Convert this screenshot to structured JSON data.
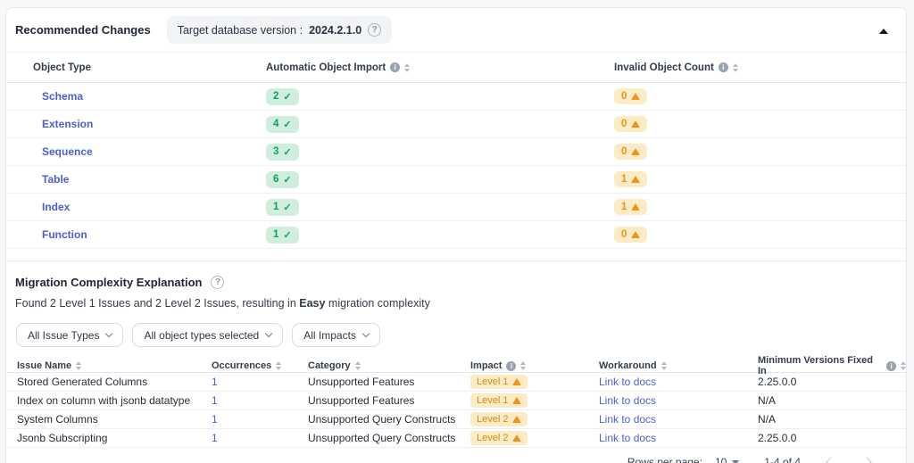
{
  "header": {
    "title": "Recommended Changes",
    "target_version_label": "Target database version :",
    "target_version_value": "2024.2.1.0"
  },
  "object_table": {
    "columns": [
      {
        "label": "Object Type"
      },
      {
        "label": "Automatic Object Import",
        "info": true,
        "sort": true
      },
      {
        "label": "Invalid Object Count",
        "info": true,
        "sort": true
      }
    ],
    "rows": [
      {
        "type": "Schema",
        "import_count": "2",
        "invalid_count": "0"
      },
      {
        "type": "Extension",
        "import_count": "4",
        "invalid_count": "0"
      },
      {
        "type": "Sequence",
        "import_count": "3",
        "invalid_count": "0"
      },
      {
        "type": "Table",
        "import_count": "6",
        "invalid_count": "1"
      },
      {
        "type": "Index",
        "import_count": "1",
        "invalid_count": "1"
      },
      {
        "type": "Function",
        "import_count": "1",
        "invalid_count": "0"
      }
    ]
  },
  "complexity": {
    "title": "Migration Complexity Explanation",
    "summary_prefix": "Found 2 Level 1 Issues and 2 Level 2 Issues, resulting in ",
    "summary_bold": "Easy",
    "summary_suffix": " migration complexity",
    "filters": [
      {
        "label": "All Issue Types"
      },
      {
        "label": "All object types selected"
      },
      {
        "label": "All Impacts"
      }
    ]
  },
  "issues_table": {
    "columns": [
      {
        "label": "Issue Name",
        "sort": true
      },
      {
        "label": "Occurrences",
        "sort": true
      },
      {
        "label": "Category",
        "sort": true
      },
      {
        "label": "Impact",
        "info": true,
        "sort": true
      },
      {
        "label": "Workaround",
        "sort": true
      },
      {
        "label": "Minimum Versions Fixed In",
        "info": true,
        "sort": true
      }
    ],
    "rows": [
      {
        "name": "Stored Generated Columns",
        "occurrences": "1",
        "category": "Unsupported Features",
        "impact": "Level 1",
        "workaround": "Link to docs",
        "min_version": "2.25.0.0"
      },
      {
        "name": "Index on column with jsonb datatype",
        "occurrences": "1",
        "category": "Unsupported Features",
        "impact": "Level 1",
        "workaround": "Link to docs",
        "min_version": "N/A"
      },
      {
        "name": "System Columns",
        "occurrences": "1",
        "category": "Unsupported Query Constructs",
        "impact": "Level 2",
        "workaround": "Link to docs",
        "min_version": "N/A"
      },
      {
        "name": "Jsonb Subscripting",
        "occurrences": "1",
        "category": "Unsupported Query Constructs",
        "impact": "Level 2",
        "workaround": "Link to docs",
        "min_version": "2.25.0.0"
      }
    ]
  },
  "pagination": {
    "rows_per_page_label": "Rows per page:",
    "rows_per_page_value": "10",
    "range_label": "1-4 of 4"
  },
  "colors": {
    "accent_link": "#4c60d6",
    "badge_green_bg": "#cfeedd",
    "badge_green_text": "#149d61",
    "badge_amber_bg": "#fbecc6",
    "badge_amber_text": "#ec9413",
    "warning_triangle": "#f0941d"
  }
}
